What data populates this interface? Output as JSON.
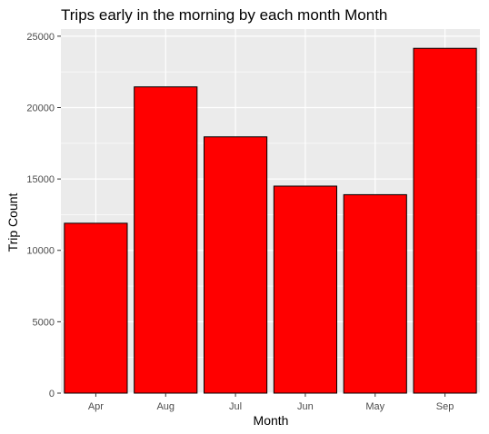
{
  "chart_data": {
    "type": "bar",
    "title": "Trips early in the morning by each month Month",
    "xlabel": "Month",
    "ylabel": "Trip Count",
    "categories": [
      "Apr",
      "Aug",
      "Jul",
      "Jun",
      "May",
      "Sep"
    ],
    "values": [
      11900,
      21450,
      17950,
      14500,
      13900,
      24150
    ],
    "ylim": [
      0,
      25500
    ],
    "yticks": [
      0,
      5000,
      10000,
      15000,
      20000,
      25000
    ],
    "ytick_labels": [
      "0",
      "5000",
      "10000",
      "15000",
      "20000",
      "25000"
    ],
    "grid": true,
    "bar_fill": "#ff0000",
    "bar_stroke": "#000000",
    "panel_background": "#ebebeb",
    "grid_color": "#ffffff"
  }
}
